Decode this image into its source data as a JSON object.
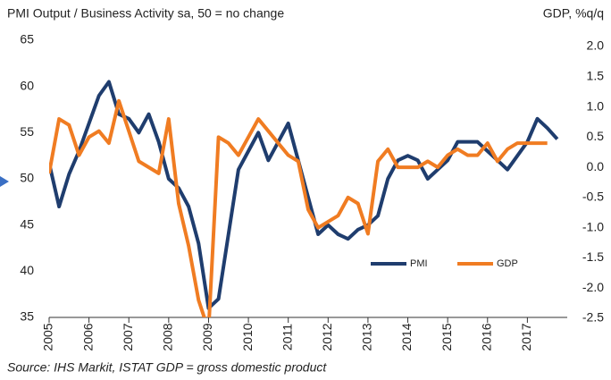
{
  "chart_data": {
    "type": "line",
    "title": "PMI Output / Business Activity sa, 50 = no change",
    "y2_label": "GDP, %q/q",
    "source": "Source: IHS Markit, ISTAT GDP = gross domestic product",
    "x": [
      2005,
      2005.25,
      2005.5,
      2005.75,
      2006,
      2006.25,
      2006.5,
      2006.75,
      2007,
      2007.25,
      2007.5,
      2007.75,
      2008,
      2008.25,
      2008.5,
      2008.75,
      2009,
      2009.25,
      2009.5,
      2009.75,
      2010,
      2010.25,
      2010.5,
      2010.75,
      2011,
      2011.25,
      2011.5,
      2011.75,
      2012,
      2012.25,
      2012.5,
      2012.75,
      2013,
      2013.25,
      2013.5,
      2013.75,
      2014,
      2014.25,
      2014.5,
      2014.75,
      2015,
      2015.25,
      2015.5,
      2015.75,
      2016,
      2016.25,
      2016.5,
      2016.75,
      2017,
      2017.25,
      2017.5,
      2017.75
    ],
    "series": [
      {
        "name": "PMI",
        "color": "#1f3d6e",
        "axis": "y",
        "values": [
          51.7,
          47,
          50.5,
          53,
          56,
          59,
          60.5,
          57,
          56.5,
          55,
          57,
          54,
          50,
          49,
          47,
          43,
          36,
          37,
          44,
          51,
          53,
          55,
          52,
          54,
          56,
          52,
          48,
          44,
          45,
          44,
          43.5,
          44.5,
          45,
          46,
          50,
          52,
          52.5,
          52,
          50,
          51,
          52,
          54,
          54,
          54,
          53,
          52,
          51,
          52.5,
          54,
          56.5,
          55.5,
          54.3
        ]
      },
      {
        "name": "GDP",
        "color": "#f07c22",
        "axis": "y2",
        "values": [
          -0.1,
          0.8,
          0.7,
          0.2,
          0.5,
          0.6,
          0.4,
          1.1,
          0.6,
          0.1,
          0,
          -0.1,
          0.8,
          -0.6,
          -1.3,
          -2.2,
          -2.7,
          0.5,
          0.4,
          0.2,
          0.5,
          0.8,
          0.6,
          0.4,
          0.2,
          0.1,
          -0.7,
          -1.0,
          -0.9,
          -0.8,
          -0.5,
          -0.6,
          -1.1,
          0.1,
          0.3,
          0,
          0,
          0,
          0.1,
          0,
          0.2,
          0.3,
          0.2,
          0.2,
          0.4,
          0.1,
          0.3,
          0.4,
          0.4,
          0.4,
          0.4,
          null
        ]
      }
    ],
    "xlim": [
      2005,
      2018
    ],
    "xticks": [
      2005,
      2006,
      2007,
      2008,
      2009,
      2010,
      2011,
      2012,
      2013,
      2014,
      2015,
      2016,
      2017
    ],
    "ylim": [
      35,
      65
    ],
    "yticks": [
      35,
      40,
      45,
      50,
      55,
      60,
      65
    ],
    "y2lim": [
      -2.5,
      2.0
    ],
    "y2ticks": [
      {
        "value": -2.5,
        "label": "-2.5"
      },
      {
        "value": -2,
        "label": "-2.0"
      },
      {
        "value": -1.5,
        "label": "-1.5"
      },
      {
        "value": -1,
        "label": "-1.0"
      },
      {
        "value": -0.5,
        "label": "-0.5"
      },
      {
        "value": 0,
        "label": "0.0"
      },
      {
        "value": 0.5,
        "label": "0.5"
      },
      {
        "value": 1,
        "label": "1.0"
      },
      {
        "value": 1.5,
        "label": "1.5"
      },
      {
        "value": 2,
        "label": "2.0"
      }
    ],
    "legend": "lower right",
    "grid": false
  }
}
